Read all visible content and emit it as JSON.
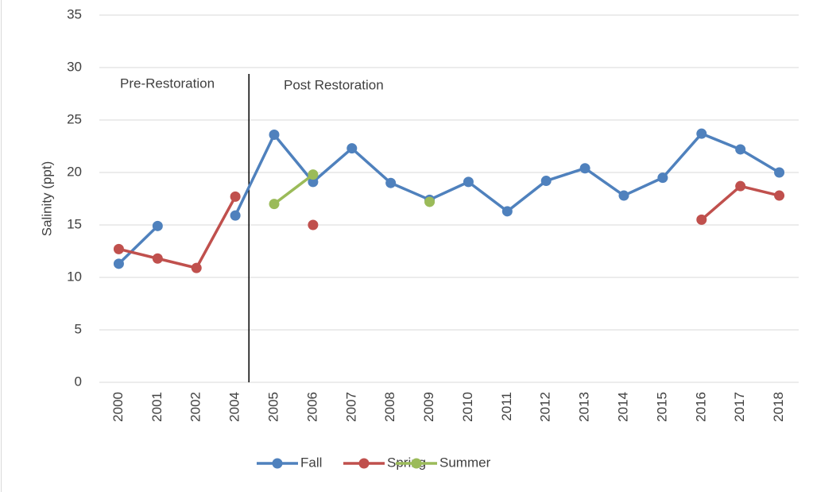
{
  "chart_data": {
    "type": "line",
    "y_axis_label": "Salinity (ppt)",
    "annotations": [
      "Pre-Restoration",
      "Post Restoration"
    ],
    "categories": [
      "2000",
      "2001",
      "2002",
      "2004",
      "2005",
      "2006",
      "2007",
      "2008",
      "2009",
      "2010",
      "2011",
      "2012",
      "2013",
      "2014",
      "2015",
      "2016",
      "2017",
      "2018"
    ],
    "series": [
      {
        "name": "Fall",
        "color": "#4f81bd",
        "values": [
          11.3,
          14.9,
          null,
          15.9,
          23.6,
          19.1,
          22.3,
          19.0,
          17.4,
          19.1,
          16.3,
          19.2,
          20.4,
          17.8,
          19.5,
          23.7,
          22.2,
          20.0
        ]
      },
      {
        "name": "Spring",
        "color": "#c0504d",
        "values": [
          12.7,
          11.8,
          10.9,
          17.7,
          null,
          15.0,
          null,
          null,
          null,
          null,
          null,
          null,
          null,
          null,
          null,
          15.5,
          18.7,
          17.8
        ]
      },
      {
        "name": "Summer",
        "color": "#9bbb59",
        "values": [
          null,
          null,
          null,
          null,
          17.0,
          19.8,
          null,
          null,
          17.2,
          null,
          null,
          null,
          null,
          null,
          null,
          null,
          null,
          null
        ]
      }
    ],
    "ylim": [
      0,
      35
    ],
    "yticks": [
      0,
      5,
      10,
      15,
      20,
      25,
      30,
      35
    ],
    "grid": true,
    "legend": "bottom"
  }
}
